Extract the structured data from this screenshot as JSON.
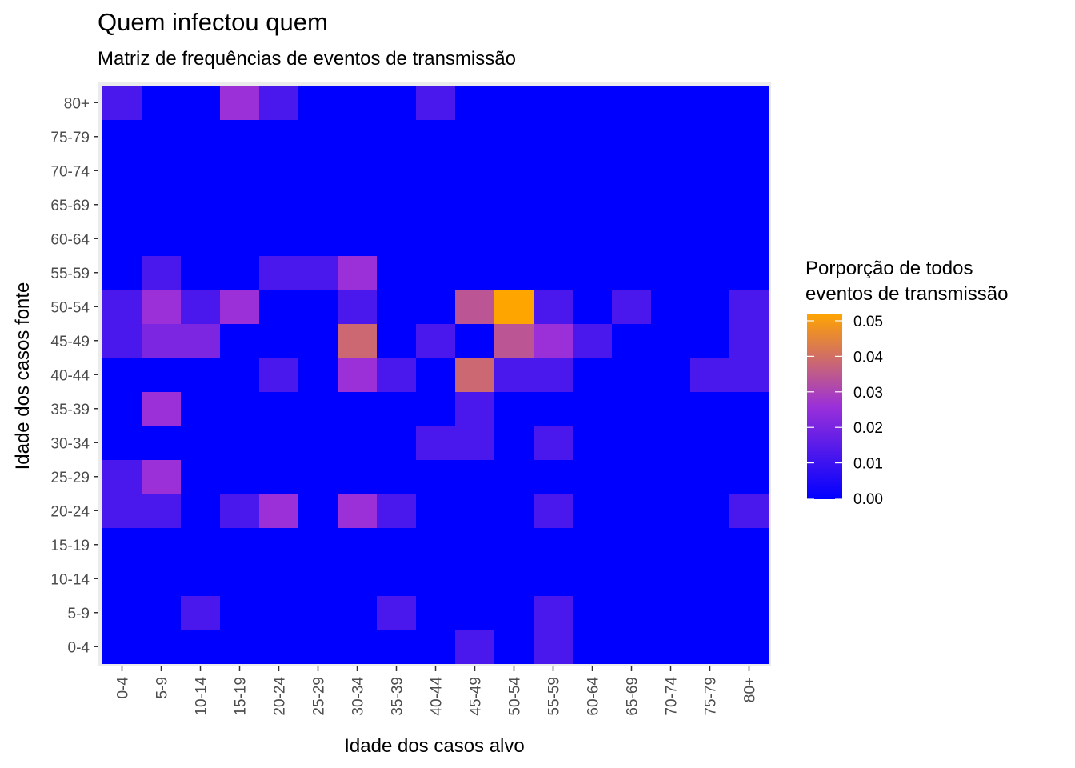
{
  "chart_data": {
    "type": "heatmap",
    "title": "Quem infectou quem",
    "subtitle": "Matriz de frequências de eventos de transmissão",
    "xlabel": "Idade dos casos alvo",
    "ylabel": "Idade dos casos fonte",
    "x_categories": [
      "0-4",
      "5-9",
      "10-14",
      "15-19",
      "20-24",
      "25-29",
      "30-34",
      "35-39",
      "40-44",
      "45-49",
      "50-54",
      "55-59",
      "60-64",
      "65-69",
      "70-74",
      "75-79",
      "80+"
    ],
    "y_categories": [
      "0-4",
      "5-9",
      "10-14",
      "15-19",
      "20-24",
      "25-29",
      "30-34",
      "35-39",
      "40-44",
      "45-49",
      "50-54",
      "55-59",
      "60-64",
      "65-69",
      "70-74",
      "75-79",
      "80+"
    ],
    "values": [
      [
        0,
        0,
        0,
        0,
        0,
        0,
        0,
        0,
        0,
        0.012,
        0,
        0.012,
        0,
        0,
        0,
        0,
        0
      ],
      [
        0,
        0,
        0.012,
        0,
        0,
        0,
        0,
        0.012,
        0,
        0,
        0,
        0.012,
        0,
        0,
        0,
        0,
        0
      ],
      [
        0,
        0,
        0,
        0,
        0,
        0,
        0,
        0,
        0,
        0,
        0,
        0,
        0,
        0,
        0,
        0,
        0
      ],
      [
        0,
        0,
        0,
        0,
        0,
        0,
        0,
        0,
        0,
        0,
        0,
        0,
        0,
        0,
        0,
        0,
        0
      ],
      [
        0.012,
        0.012,
        0,
        0.012,
        0.025,
        0,
        0.025,
        0.012,
        0,
        0,
        0,
        0.012,
        0,
        0,
        0,
        0,
        0.012
      ],
      [
        0.012,
        0.025,
        0,
        0,
        0,
        0,
        0,
        0,
        0,
        0,
        0,
        0,
        0,
        0,
        0,
        0,
        0
      ],
      [
        0,
        0,
        0,
        0,
        0,
        0,
        0,
        0,
        0.012,
        0.012,
        0,
        0.012,
        0,
        0,
        0,
        0,
        0
      ],
      [
        0,
        0.025,
        0,
        0,
        0,
        0,
        0,
        0,
        0,
        0.012,
        0,
        0,
        0,
        0,
        0,
        0,
        0
      ],
      [
        0,
        0,
        0,
        0,
        0.012,
        0,
        0.025,
        0.012,
        0,
        0.037,
        0.012,
        0.012,
        0,
        0,
        0,
        0.012,
        0.012
      ],
      [
        0.012,
        0.02,
        0.02,
        0,
        0,
        0,
        0.037,
        0,
        0.012,
        0,
        0.033,
        0.025,
        0.012,
        0,
        0,
        0,
        0.012
      ],
      [
        0.012,
        0.025,
        0.012,
        0.025,
        0,
        0,
        0.012,
        0,
        0,
        0.033,
        0.05,
        0.012,
        0,
        0.012,
        0,
        0,
        0.012
      ],
      [
        0,
        0.012,
        0,
        0,
        0.012,
        0.012,
        0.025,
        0,
        0,
        0,
        0,
        0,
        0,
        0,
        0,
        0,
        0
      ],
      [
        0,
        0,
        0,
        0,
        0,
        0,
        0,
        0,
        0,
        0,
        0,
        0,
        0,
        0,
        0,
        0,
        0
      ],
      [
        0,
        0,
        0,
        0,
        0,
        0,
        0,
        0,
        0,
        0,
        0,
        0,
        0,
        0,
        0,
        0,
        0
      ],
      [
        0,
        0,
        0,
        0,
        0,
        0,
        0,
        0,
        0,
        0,
        0,
        0,
        0,
        0,
        0,
        0,
        0
      ],
      [
        0,
        0,
        0,
        0,
        0,
        0,
        0,
        0,
        0,
        0,
        0,
        0,
        0,
        0,
        0,
        0,
        0
      ],
      [
        0.012,
        0,
        0,
        0.025,
        0.012,
        0,
        0,
        0,
        0.012,
        0,
        0,
        0,
        0,
        0,
        0,
        0,
        0
      ]
    ],
    "color_scale": {
      "low": "#0000ff",
      "mid": "#9b30d9",
      "high": "#ffa500",
      "min": 0,
      "max": 0.05
    },
    "legend": {
      "title_lines": [
        "Porporção de todos",
        "eventos de transmissão"
      ],
      "ticks": [
        "0.00",
        "0.01",
        "0.02",
        "0.03",
        "0.04",
        "0.05"
      ],
      "placement": "right"
    },
    "grid": true
  }
}
